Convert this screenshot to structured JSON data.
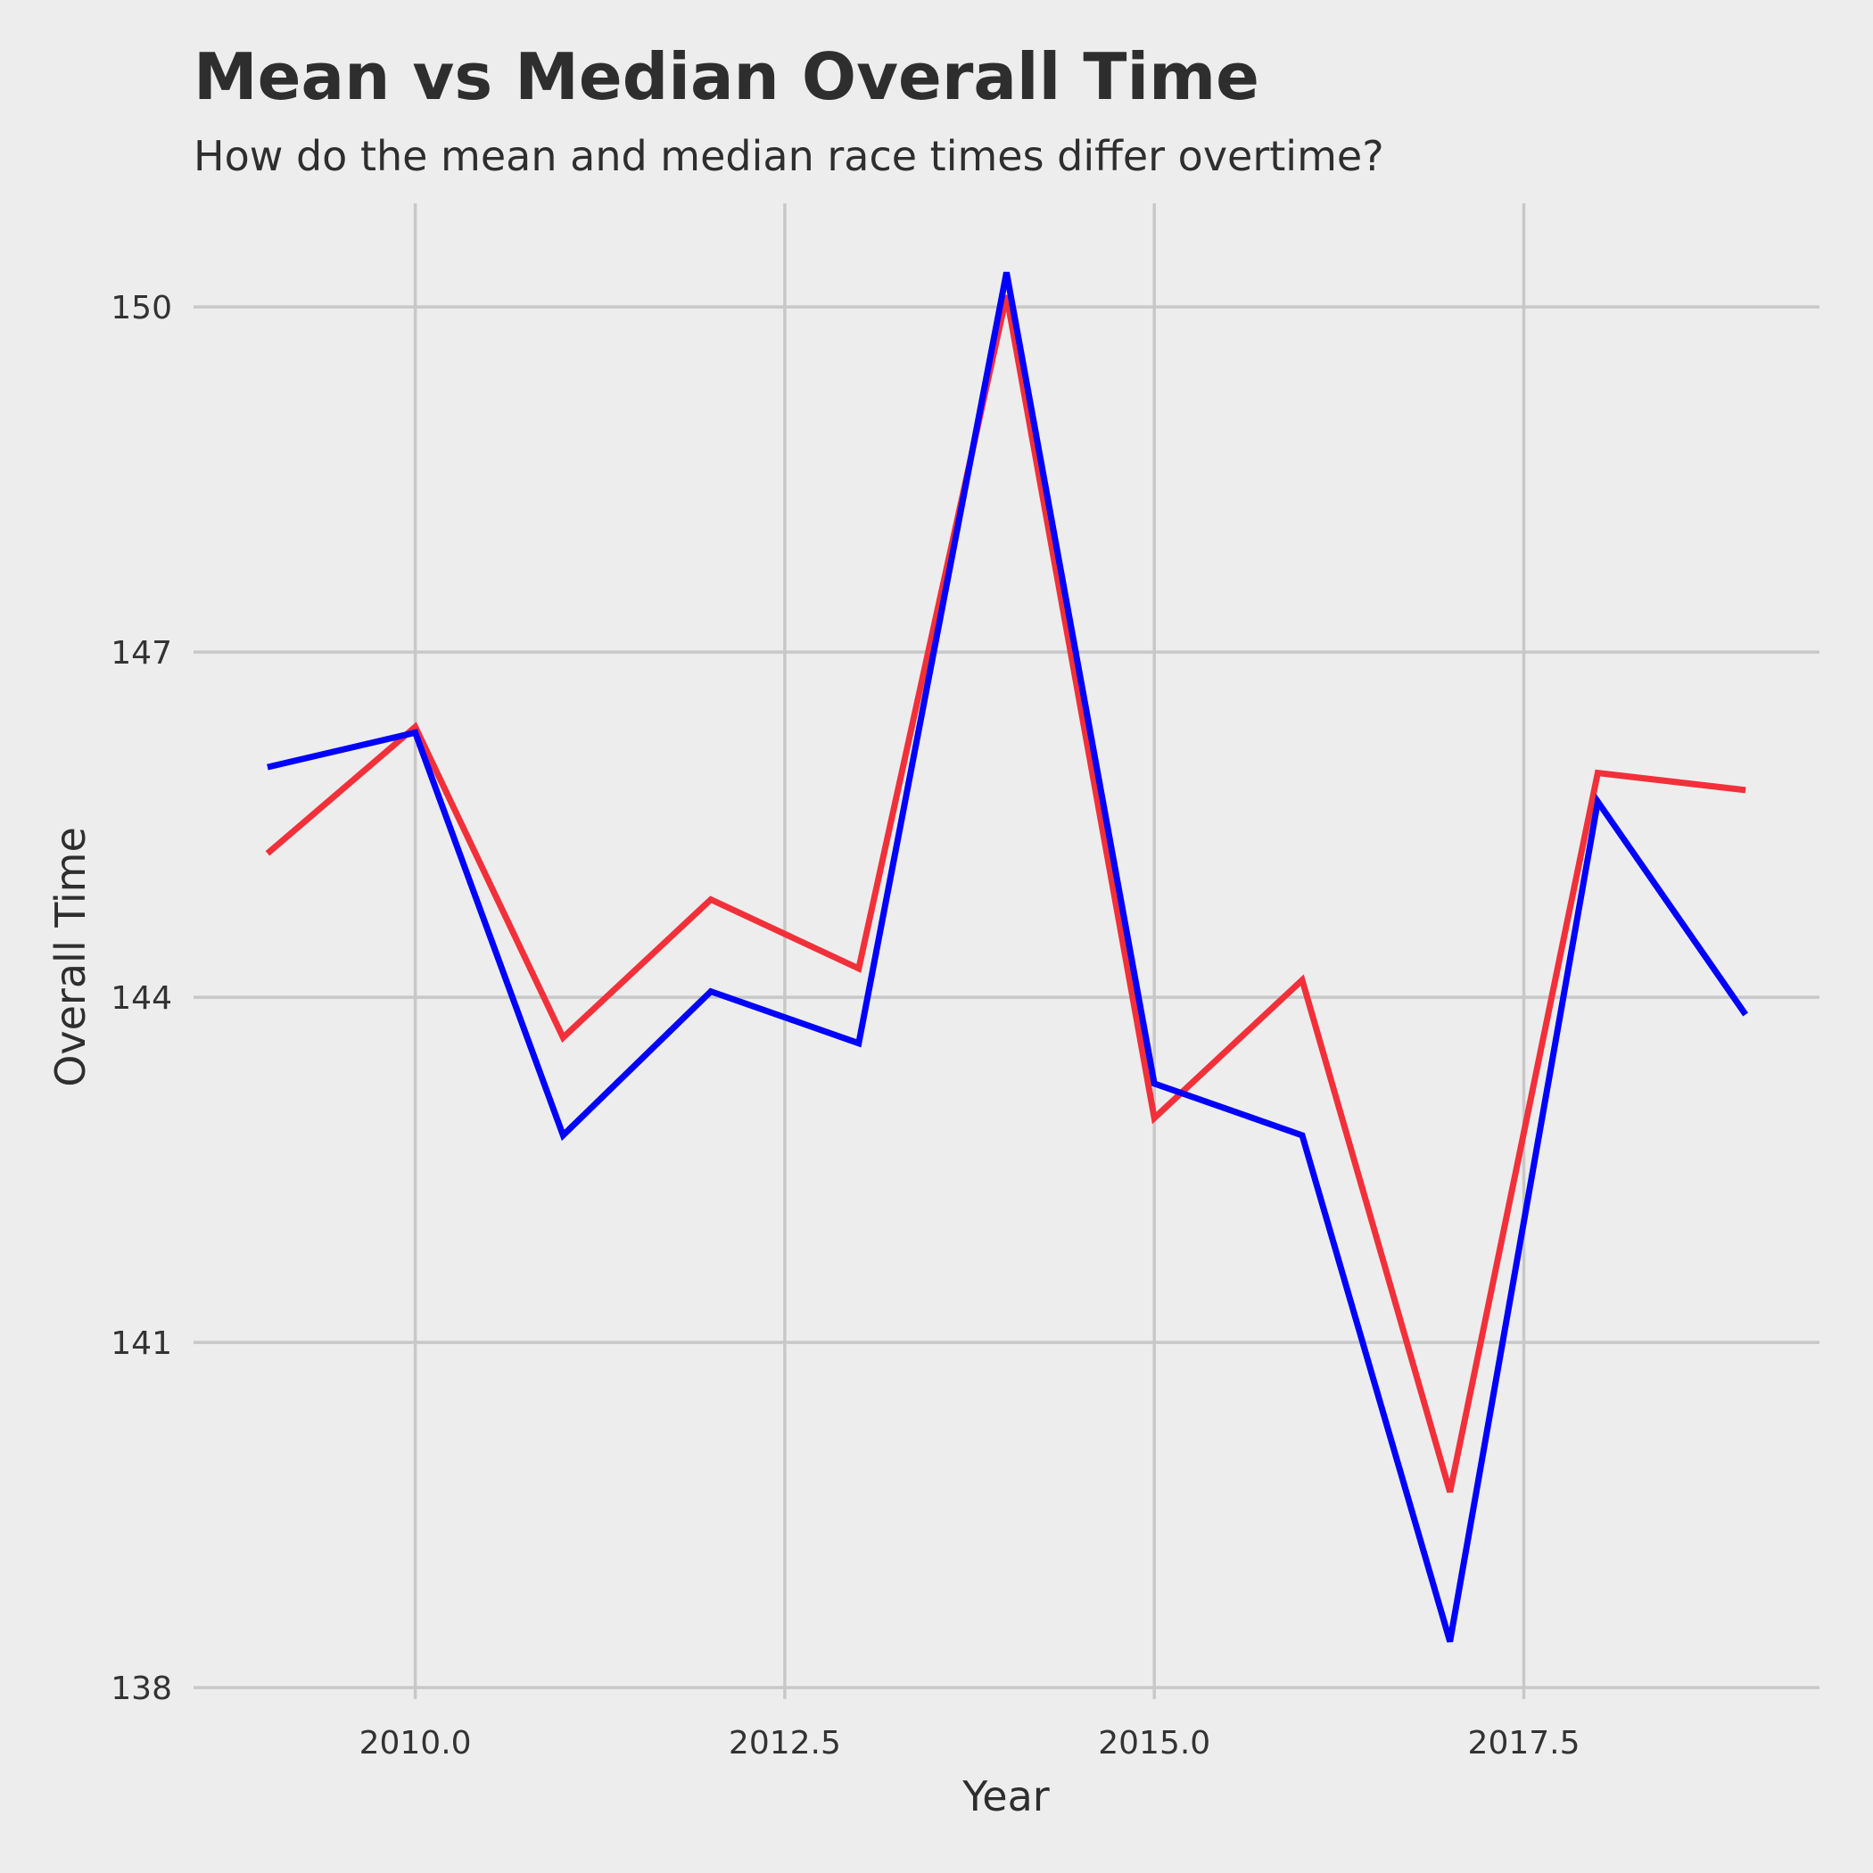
{
  "chart_data": {
    "type": "line",
    "title": "Mean vs Median Overall Time",
    "subtitle": "How do the mean and median race times differ overtime?",
    "xlabel": "Year",
    "ylabel": "Overall Time",
    "xlim": [
      2008.5,
      2019.5
    ],
    "ylim": [
      137.9,
      150.9
    ],
    "x_ticks": [
      2010.0,
      2012.5,
      2015.0,
      2017.5
    ],
    "x_tick_labels": [
      "2010.0",
      "2012.5",
      "2015.0",
      "2017.5"
    ],
    "y_ticks": [
      138,
      141,
      144,
      147,
      150
    ],
    "y_tick_labels": [
      "138",
      "141",
      "144",
      "147",
      "150"
    ],
    "grid": true,
    "x": [
      2009,
      2010,
      2011,
      2012,
      2013,
      2014,
      2015,
      2016,
      2017,
      2018,
      2019
    ],
    "series": [
      {
        "color": "#f2303a",
        "values": [
          145.25,
          146.35,
          143.65,
          144.85,
          144.25,
          150.1,
          142.95,
          144.15,
          139.7,
          145.95,
          145.8
        ]
      },
      {
        "color": "#0000ff",
        "values": [
          146.0,
          146.3,
          142.8,
          144.05,
          143.6,
          150.3,
          143.25,
          142.8,
          138.4,
          145.7,
          143.85
        ]
      }
    ]
  }
}
